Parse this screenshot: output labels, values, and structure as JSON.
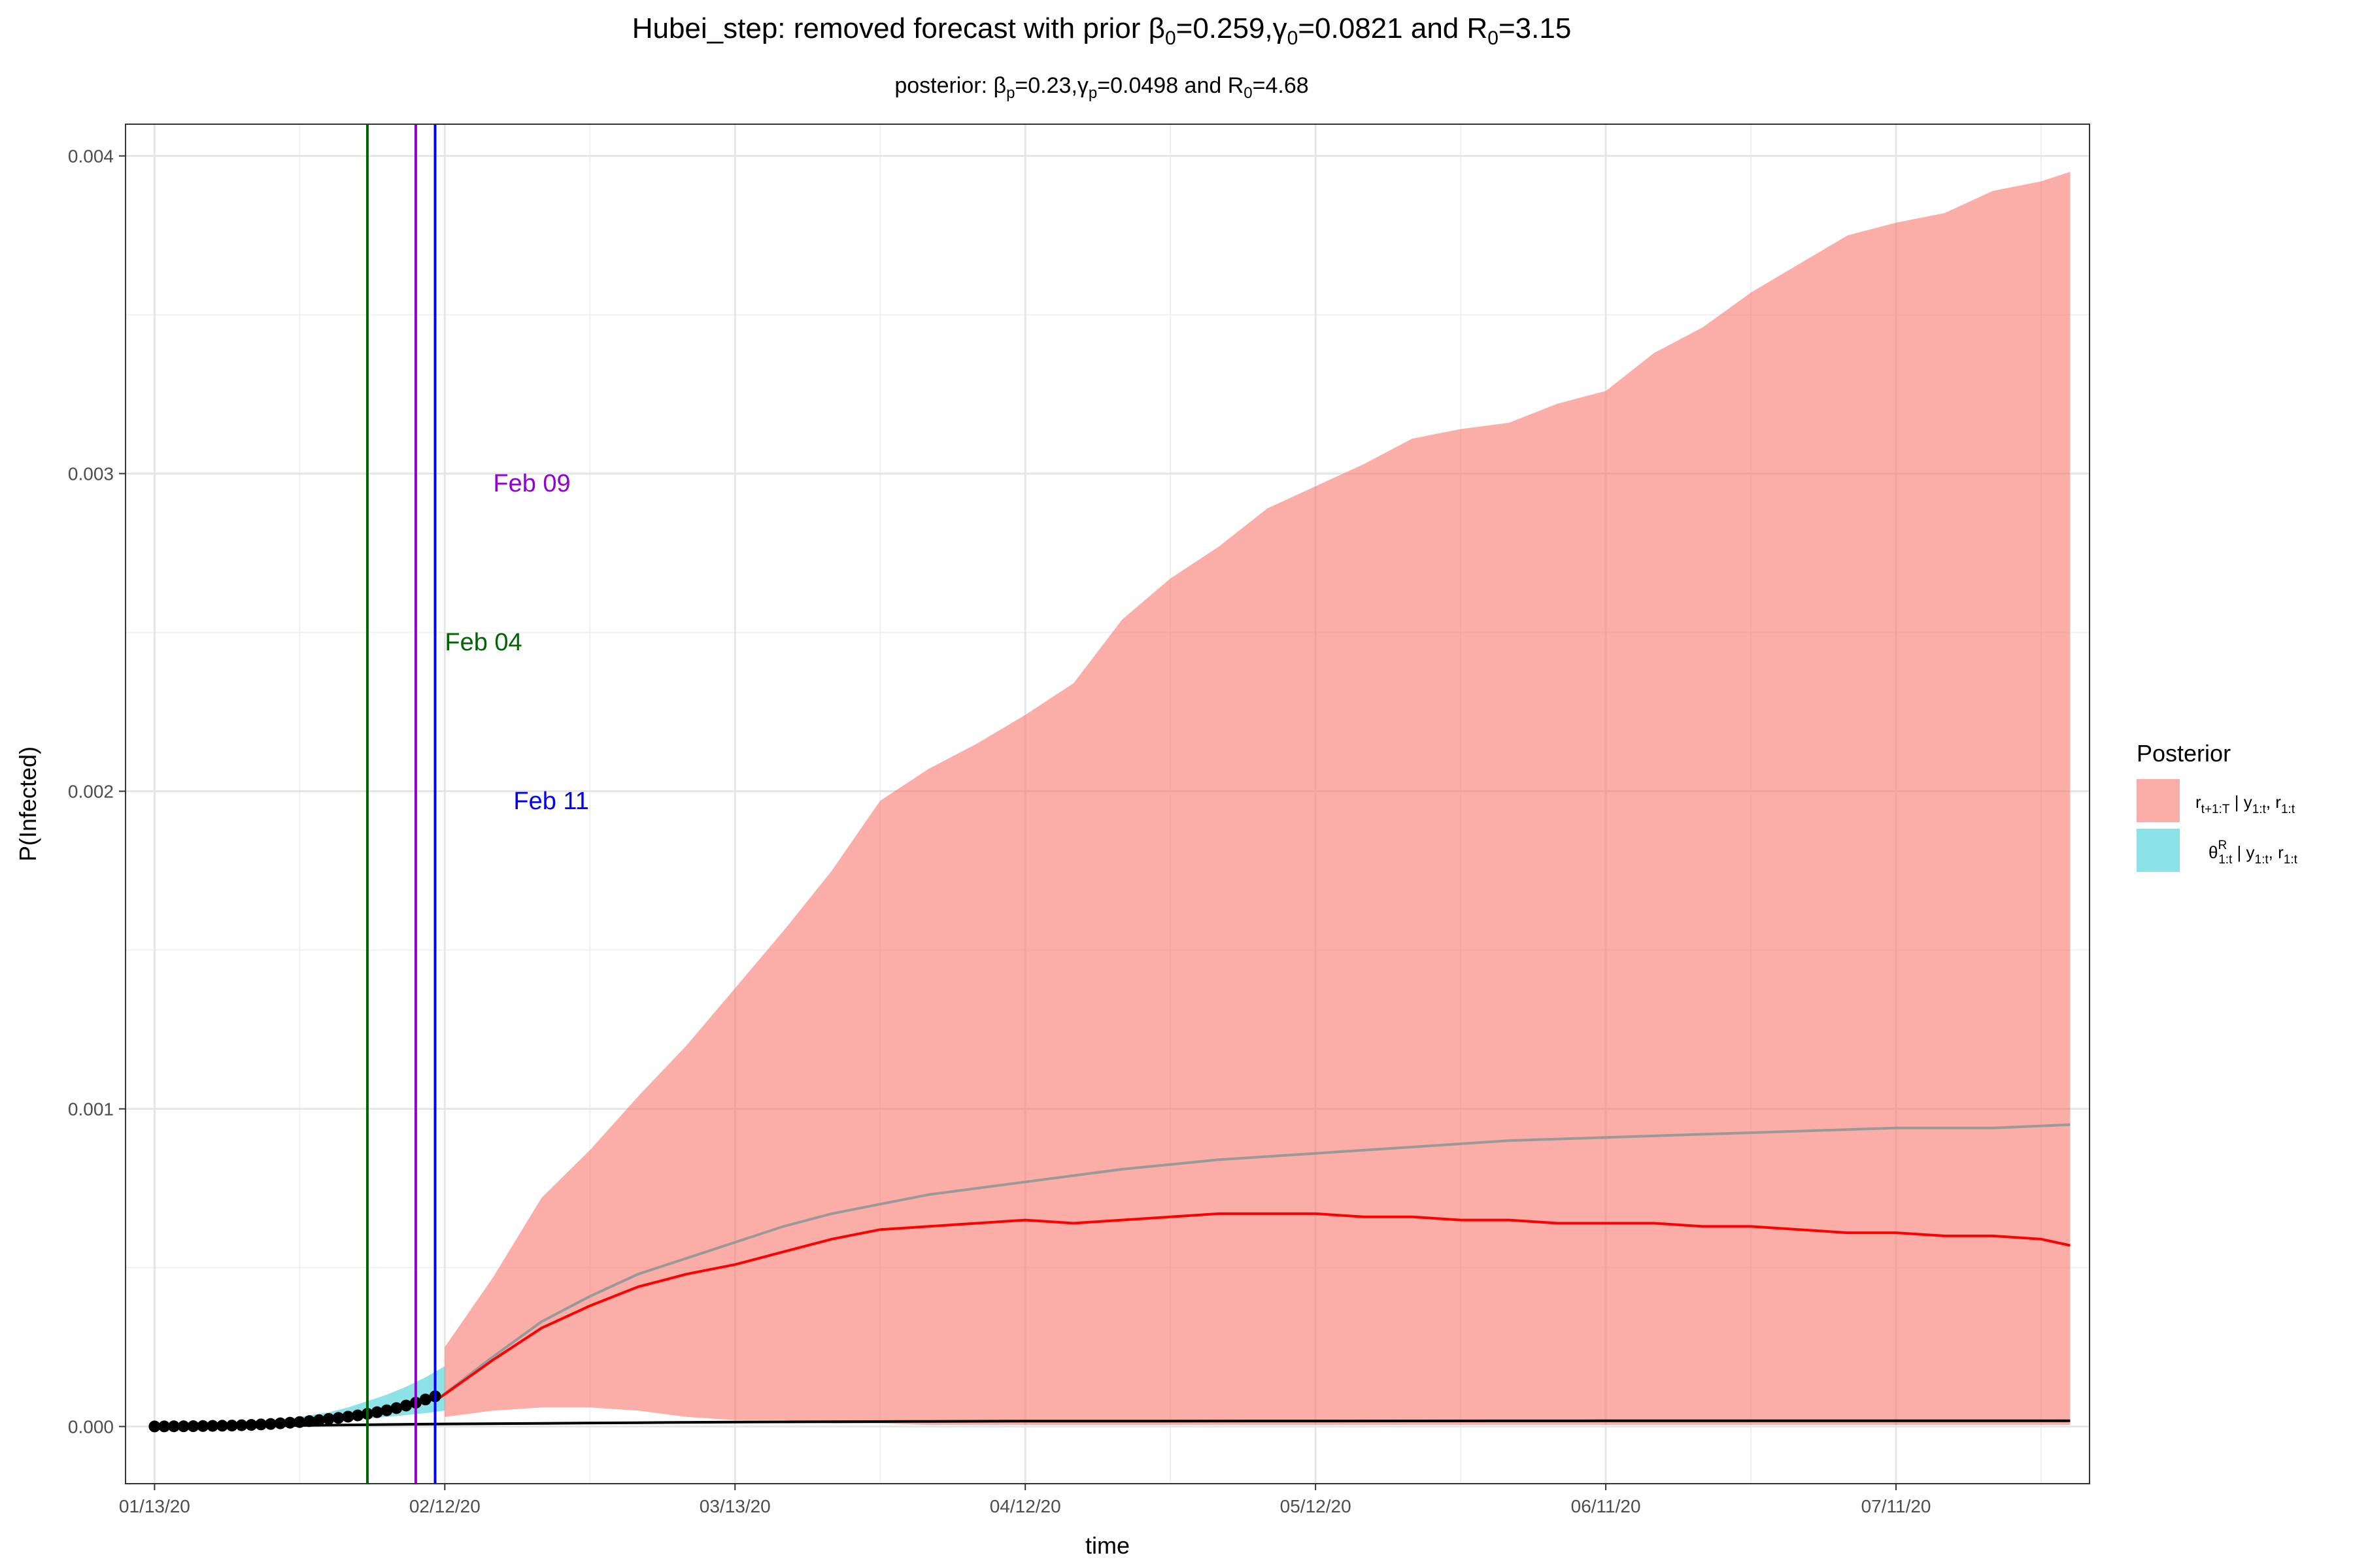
{
  "chart_data": {
    "type": "line",
    "title": {
      "prefix": "Hubei_step: removed forecast with prior ",
      "b0_sym": "β",
      "b0_sub": "0",
      "b0_val": "=0.259,",
      "g0_sym": "γ",
      "g0_sub": "0",
      "g0_val": "=0.0821 and ",
      "r0_sym": "R",
      "r0_sub": "0",
      "r0_val": "=3.15"
    },
    "subtitle": {
      "prefix": "posterior: ",
      "bp_sym": "β",
      "bp_sub": "p",
      "bp_val": "=0.23,",
      "gp_sym": "γ",
      "gp_sub": "p",
      "gp_val": "=0.0498 and ",
      "r0_sym": "R",
      "r0_sub": "0",
      "r0_val": "=4.68"
    },
    "xlabel": "time",
    "ylabel": "P(Infected)",
    "x_range_days": [
      -3,
      200
    ],
    "ylim": [
      -0.00018,
      0.0041
    ],
    "grid": true,
    "x_ticks": [
      {
        "day": 0,
        "label": "01/13/20"
      },
      {
        "day": 30,
        "label": "02/12/20"
      },
      {
        "day": 60,
        "label": "03/13/20"
      },
      {
        "day": 90,
        "label": "04/12/20"
      },
      {
        "day": 120,
        "label": "05/12/20"
      },
      {
        "day": 150,
        "label": "06/11/20"
      },
      {
        "day": 180,
        "label": "07/11/20"
      }
    ],
    "y_ticks": [
      {
        "value": 0.0,
        "label": "0.000"
      },
      {
        "value": 0.001,
        "label": "0.001"
      },
      {
        "value": 0.002,
        "label": "0.002"
      },
      {
        "value": 0.003,
        "label": "0.003"
      },
      {
        "value": 0.004,
        "label": "0.004"
      }
    ],
    "vlines": [
      {
        "date": "Feb 04",
        "day": 22,
        "color": "#006400",
        "label": "Feb 04",
        "label_day": 34,
        "label_y": 0.00247
      },
      {
        "date": "Feb 09",
        "day": 27,
        "color": "#9400D3",
        "label": "Feb 09",
        "label_day": 39,
        "label_y": 0.00297
      },
      {
        "date": "Feb 11",
        "day": 29,
        "color": "#0000FF",
        "label": "Feb 11",
        "label_day": 41,
        "label_y": 0.00197
      }
    ],
    "legend": {
      "title": "Posterior",
      "position": "right",
      "entries": [
        {
          "color": "#F8766D",
          "alpha": 0.6,
          "label_main": "r",
          "label_sub": "t+1:T",
          "label_rest": " | y",
          "label_sub2": "1:t",
          "label_rest2": ", r",
          "label_sub3": "1:t"
        },
        {
          "color": "#00BFC4",
          "alpha": 0.45,
          "label_main": "θ",
          "label_sup": "R",
          "label_sub": "1:t",
          "label_rest": " | y",
          "label_sub2": "1:t",
          "label_rest2": ", r",
          "label_sub3": "1:t"
        }
      ]
    },
    "series": [
      {
        "kind": "observed_points",
        "color": "#000000",
        "x": [
          0,
          1,
          2,
          3,
          4,
          5,
          6,
          7,
          8,
          9,
          10,
          11,
          12,
          13,
          14,
          15,
          16,
          17,
          18,
          19,
          20,
          21,
          22,
          23,
          24,
          25,
          26,
          27,
          28,
          29
        ],
        "y": [
          2e-07,
          4e-07,
          6e-07,
          8e-07,
          1e-06,
          1.5e-06,
          2e-06,
          2.5e-06,
          3e-06,
          4e-06,
          5e-06,
          6.5e-06,
          8e-06,
          1e-05,
          1.2e-05,
          1.4e-05,
          1.7e-05,
          2e-05,
          2.4e-05,
          2.7e-05,
          3.1e-05,
          3.5e-05,
          4e-05,
          4.5e-05,
          5.1e-05,
          5.8e-05,
          6.6e-05,
          7.5e-05,
          8.5e-05,
          9.5e-05
        ]
      },
      {
        "kind": "theta_ribbon",
        "color": "#00BFC4",
        "x": [
          0,
          5,
          10,
          15,
          18,
          20,
          22,
          24,
          26,
          28,
          30
        ],
        "upper": [
          2e-06,
          5e-06,
          1.2e-05,
          3e-05,
          4.5e-05,
          6e-05,
          8e-05,
          0.0001,
          0.000125,
          0.000155,
          0.00019
        ],
        "lower": [
          0,
          1e-06,
          3e-06,
          8e-06,
          1.4e-05,
          2e-05,
          2.5e-05,
          3e-05,
          3.6e-05,
          4.2e-05,
          5e-05
        ]
      },
      {
        "kind": "forecast_ribbon",
        "color": "#F8766D",
        "x": [
          30,
          35,
          40,
          45,
          50,
          55,
          60,
          65,
          70,
          75,
          80,
          85,
          90,
          95,
          100,
          105,
          110,
          115,
          120,
          125,
          130,
          135,
          140,
          145,
          150,
          155,
          160,
          165,
          170,
          175,
          180,
          185,
          190,
          195,
          198
        ],
        "upper": [
          0.00025,
          0.00047,
          0.00072,
          0.00087,
          0.00104,
          0.0012,
          0.00138,
          0.00156,
          0.00175,
          0.00197,
          0.00207,
          0.00215,
          0.00224,
          0.00234,
          0.00254,
          0.00267,
          0.00277,
          0.00289,
          0.00296,
          0.00303,
          0.00311,
          0.00314,
          0.00316,
          0.00322,
          0.00326,
          0.00338,
          0.00346,
          0.00357,
          0.00366,
          0.00375,
          0.00379,
          0.00382,
          0.00389,
          0.00392,
          0.00395
        ],
        "lower": [
          3e-05,
          5e-05,
          6e-05,
          6e-05,
          5e-05,
          3e-05,
          2e-05,
          2e-05,
          1e-05,
          1e-05,
          5e-06,
          5e-06,
          5e-06,
          5e-06,
          5e-06,
          5e-06,
          5e-06,
          5e-06,
          5e-06,
          5e-06,
          5e-06,
          5e-06,
          5e-06,
          5e-06,
          5e-06,
          5e-06,
          5e-06,
          5e-06,
          5e-06,
          5e-06,
          5e-06,
          5e-06,
          5e-06,
          5e-06,
          5e-06
        ]
      },
      {
        "kind": "prior_mean",
        "color": "#999999",
        "x": [
          29,
          35,
          40,
          45,
          50,
          55,
          60,
          65,
          70,
          75,
          80,
          85,
          90,
          100,
          110,
          120,
          130,
          140,
          150,
          160,
          170,
          180,
          190,
          198
        ],
        "y": [
          8e-05,
          0.00022,
          0.00033,
          0.00041,
          0.00048,
          0.00053,
          0.00058,
          0.00063,
          0.00067,
          0.0007,
          0.00073,
          0.00075,
          0.00077,
          0.00081,
          0.00084,
          0.00086,
          0.00088,
          0.0009,
          0.00091,
          0.00092,
          0.00093,
          0.00094,
          0.00094,
          0.00095
        ]
      },
      {
        "kind": "posterior_mean",
        "color": "#FF0000",
        "x": [
          29,
          35,
          40,
          45,
          50,
          55,
          60,
          65,
          70,
          75,
          80,
          85,
          90,
          95,
          100,
          105,
          110,
          115,
          120,
          125,
          130,
          135,
          140,
          145,
          150,
          155,
          160,
          165,
          170,
          175,
          180,
          185,
          190,
          195,
          198
        ],
        "y": [
          8e-05,
          0.00021,
          0.00031,
          0.00038,
          0.00044,
          0.00048,
          0.00051,
          0.00055,
          0.00059,
          0.00062,
          0.00063,
          0.00064,
          0.00065,
          0.00064,
          0.00065,
          0.00066,
          0.00067,
          0.00067,
          0.00067,
          0.00066,
          0.00066,
          0.00065,
          0.00065,
          0.00064,
          0.00064,
          0.00064,
          0.00063,
          0.00063,
          0.00062,
          0.00061,
          0.00061,
          0.0006,
          0.0006,
          0.00059,
          0.00057
        ]
      },
      {
        "kind": "baseline",
        "color": "#000000",
        "x": [
          0,
          10,
          20,
          30,
          40,
          50,
          60,
          70,
          80,
          90,
          100,
          150,
          198
        ],
        "y": [
          0,
          2e-06,
          5e-06,
          8e-06,
          1e-05,
          1.2e-05,
          1.4e-05,
          1.5e-05,
          1.6e-05,
          1.7e-05,
          1.7e-05,
          1.8e-05,
          1.8e-05
        ]
      }
    ]
  }
}
